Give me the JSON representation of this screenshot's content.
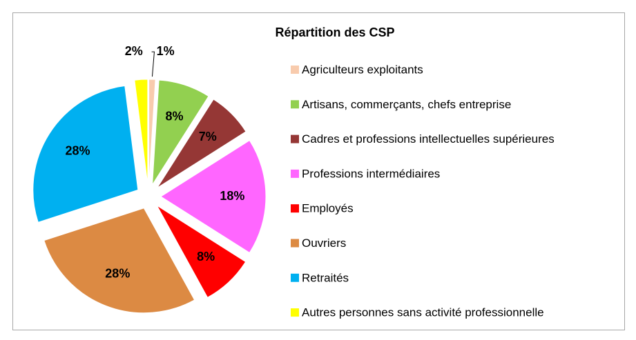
{
  "chart_data": {
    "type": "pie",
    "title": "Répartition des CSP",
    "categories": [
      "Agriculteurs exploitants",
      "Artisans, commerçants, chefs entreprise",
      "Cadres et professions intellectuelles supérieures",
      "Professions intermédiaires",
      "Employés",
      "Ouvriers",
      "Retraités",
      "Autres personnes sans activité professionnelle"
    ],
    "values": [
      1,
      8,
      7,
      18,
      8,
      28,
      28,
      2
    ],
    "value_labels": [
      "1%",
      "8%",
      "7%",
      "18%",
      "8%",
      "28%",
      "28%",
      "2%"
    ],
    "colors": [
      "#f8cbad",
      "#92d050",
      "#953735",
      "#ff66ff",
      "#ff0000",
      "#dc8a43",
      "#00b0f0",
      "#ffff00"
    ]
  }
}
